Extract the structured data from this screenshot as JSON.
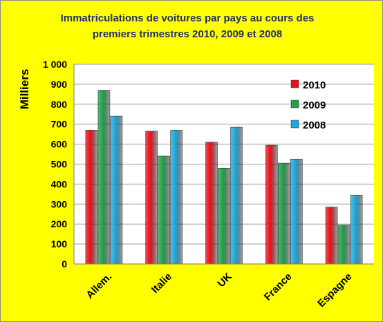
{
  "chart_data": {
    "type": "bar",
    "title": [
      "Immatriculations  de voitures par pays au cours des",
      "premiers trimestres  2010, 2009 et 2008"
    ],
    "ylabel": "Milliers",
    "xlabel": "",
    "categories": [
      "Allem.",
      "Italie",
      "UK",
      "France",
      "Espagne"
    ],
    "ylim": [
      0,
      1000
    ],
    "yticks": [
      "0",
      "100",
      "200",
      "300",
      "400",
      "500",
      "600",
      "700",
      "800",
      "900",
      "1 000"
    ],
    "ytick_values": [
      0,
      100,
      200,
      300,
      400,
      500,
      600,
      700,
      800,
      900,
      1000
    ],
    "grid": true,
    "legend_position": "top-right",
    "series": [
      {
        "name": "2010",
        "color": "#e8101a",
        "values": [
          670,
          665,
          610,
          595,
          285
        ]
      },
      {
        "name": "2009",
        "color": "#1fa04a",
        "values": [
          870,
          540,
          480,
          505,
          195
        ]
      },
      {
        "name": "2008",
        "color": "#1aa8de",
        "values": [
          740,
          670,
          685,
          525,
          345
        ]
      }
    ]
  }
}
